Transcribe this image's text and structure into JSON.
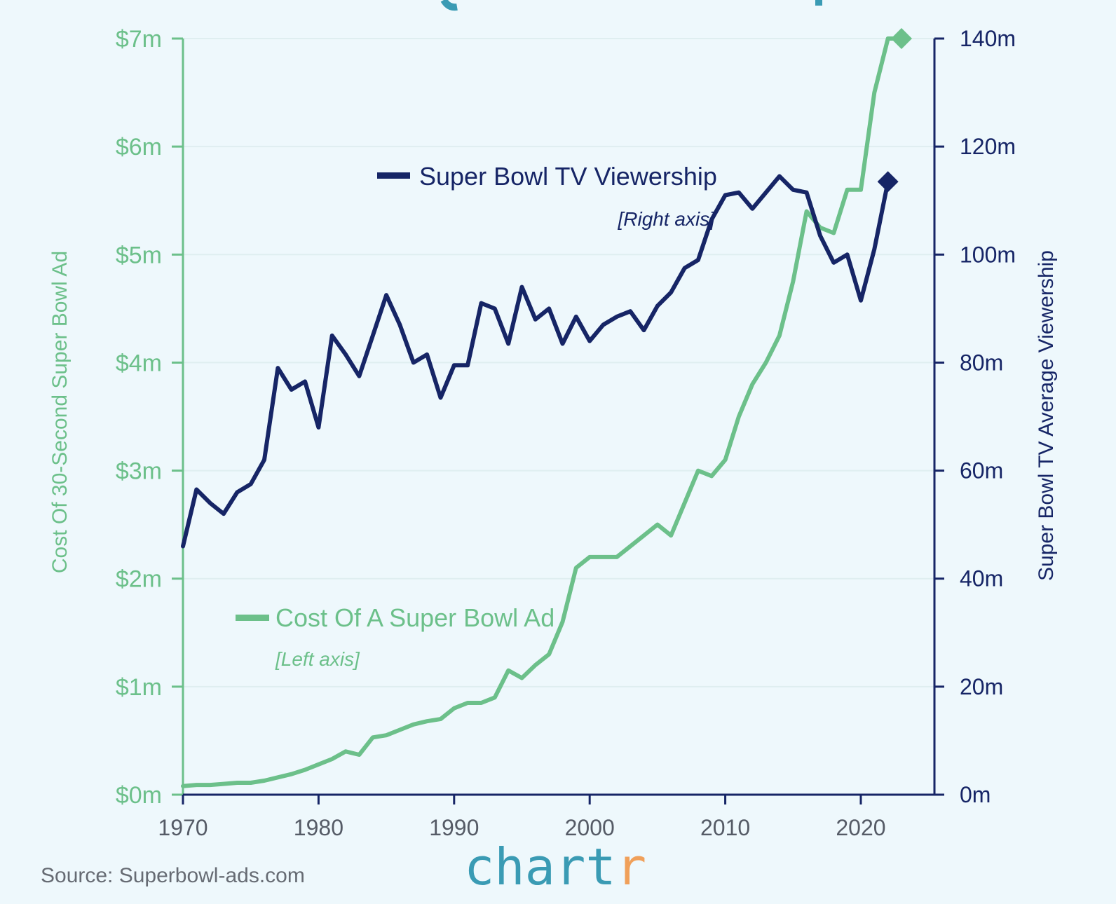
{
  "chart_data": {
    "type": "line",
    "x_ticks": [
      "1970",
      "1980",
      "1990",
      "2000",
      "2010",
      "2020"
    ],
    "x_range": [
      1970,
      2023
    ],
    "left_axis": {
      "label": "Cost Of 30-Second Super Bowl Ad",
      "ticks": [
        "$0m",
        "$1m",
        "$2m",
        "$3m",
        "$4m",
        "$5m",
        "$6m",
        "$7m"
      ],
      "range": [
        0,
        7
      ],
      "color": "#6cc08a"
    },
    "right_axis": {
      "label": "Super Bowl TV Average Viewership",
      "ticks": [
        "0m",
        "20m",
        "40m",
        "60m",
        "80m",
        "100m",
        "120m",
        "140m"
      ],
      "range": [
        0,
        140
      ],
      "color": "#162566"
    },
    "legend": {
      "viewership": {
        "label": "Super Bowl TV Viewership",
        "note": "[Right axis]"
      },
      "cost": {
        "label": "Cost Of A Super Bowl Ad",
        "note": "[Left axis]"
      }
    },
    "series": [
      {
        "name": "Super Bowl TV Viewership",
        "axis": "right",
        "color": "#162566",
        "x": [
          1970,
          1971,
          1972,
          1973,
          1974,
          1975,
          1976,
          1977,
          1978,
          1979,
          1980,
          1981,
          1982,
          1983,
          1984,
          1985,
          1986,
          1987,
          1988,
          1989,
          1990,
          1991,
          1992,
          1993,
          1994,
          1995,
          1996,
          1997,
          1998,
          1999,
          2000,
          2001,
          2002,
          2003,
          2004,
          2005,
          2006,
          2007,
          2008,
          2009,
          2010,
          2011,
          2012,
          2013,
          2014,
          2015,
          2016,
          2017,
          2018,
          2019,
          2020,
          2021,
          2022
        ],
        "values": [
          46,
          56.5,
          54,
          52,
          56,
          57.5,
          62,
          79,
          75,
          76.5,
          68,
          85,
          81.5,
          77.5,
          85,
          92.5,
          87,
          80,
          81.5,
          73.5,
          79.5,
          79.5,
          91,
          90,
          83.5,
          94,
          88,
          90,
          83.5,
          88.5,
          84,
          87,
          88.5,
          89.5,
          86,
          90.5,
          93,
          97.5,
          99,
          106.5,
          111,
          111.5,
          108.5,
          111.5,
          114.5,
          112,
          111.5,
          103.5,
          98.5,
          100,
          91.5,
          101,
          113.5
        ]
      },
      {
        "name": "Cost Of A Super Bowl Ad",
        "axis": "left",
        "color": "#6cc08a",
        "x": [
          1970,
          1971,
          1972,
          1973,
          1974,
          1975,
          1976,
          1977,
          1978,
          1979,
          1980,
          1981,
          1982,
          1983,
          1984,
          1985,
          1986,
          1987,
          1988,
          1989,
          1990,
          1991,
          1992,
          1993,
          1994,
          1995,
          1996,
          1997,
          1998,
          1999,
          2000,
          2001,
          2002,
          2003,
          2004,
          2005,
          2006,
          2007,
          2008,
          2009,
          2010,
          2011,
          2012,
          2013,
          2014,
          2015,
          2016,
          2017,
          2018,
          2019,
          2020,
          2021,
          2022,
          2023
        ],
        "values": [
          0.08,
          0.09,
          0.09,
          0.1,
          0.11,
          0.11,
          0.13,
          0.16,
          0.19,
          0.23,
          0.28,
          0.33,
          0.4,
          0.37,
          0.53,
          0.55,
          0.6,
          0.65,
          0.68,
          0.7,
          0.8,
          0.85,
          0.85,
          0.9,
          1.15,
          1.08,
          1.2,
          1.3,
          1.6,
          2.1,
          2.2,
          2.2,
          2.2,
          2.3,
          2.4,
          2.5,
          2.4,
          2.7,
          3.0,
          2.95,
          3.1,
          3.5,
          3.8,
          4.0,
          4.25,
          4.75,
          5.4,
          5.25,
          5.2,
          5.6,
          5.6,
          6.5,
          7.0,
          7.0
        ]
      }
    ],
    "end_markers": [
      {
        "series": "Super Bowl TV Viewership",
        "x": 2022,
        "value": 113.5,
        "shape": "diamond"
      },
      {
        "series": "Cost Of A Super Bowl Ad",
        "x": 2023,
        "value": 7.0,
        "shape": "diamond"
      }
    ]
  },
  "footer": {
    "source": "Source: Superbowl-ads.com",
    "brand_main": "chart",
    "brand_accent": "r",
    "brand_color": "#3a9bb4",
    "brand_accent_color": "#f0a05a"
  },
  "title_fragment_color": "#3a9bb4"
}
